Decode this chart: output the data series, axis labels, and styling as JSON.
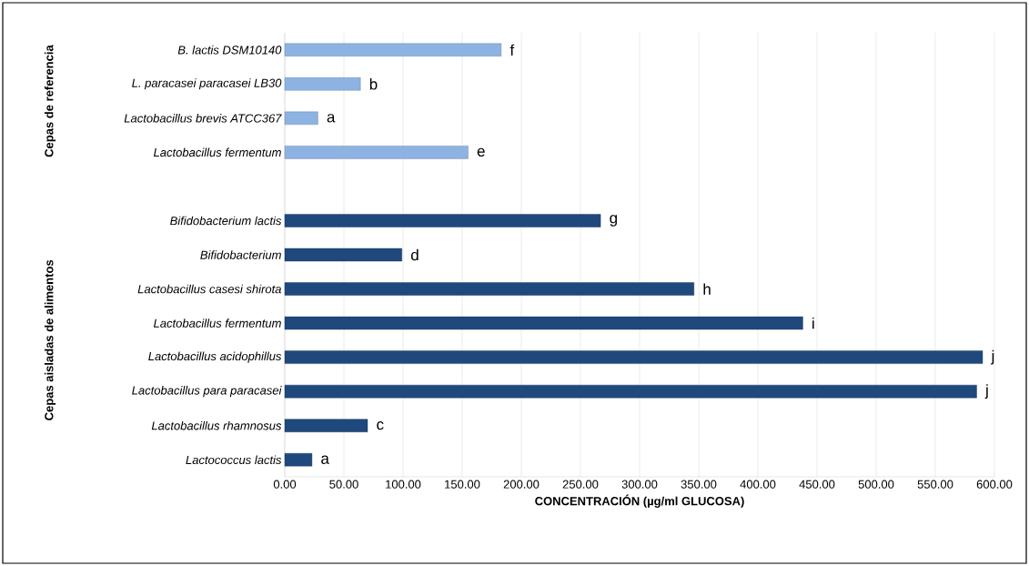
{
  "chart_data": {
    "type": "bar",
    "orientation": "horizontal",
    "xlabel": "CONCENTRACIÓN (µg/ml GLUCOSA)",
    "categories": [
      "B. lactis DSM10140",
      "L. paracasei paracasei LB30",
      "Lactobacillus brevis ATCC367",
      "Lactobacillus fermentum",
      null,
      "Bifidobacterium lactis",
      "Bifidobacterium",
      "Lactobacillus casesi shirota",
      "Lactobacillus fermentum",
      "Lactobacillus acidophillus",
      "Lactobacillus para paracasei",
      "Lactobacillus rhamnosus",
      "Lactococcus lactis"
    ],
    "values": [
      183,
      64,
      28,
      155,
      null,
      267,
      99,
      346,
      438,
      590,
      585,
      70,
      23
    ],
    "colors": [
      "#8db3e2",
      "#8db3e2",
      "#8db3e2",
      "#8db3e2",
      "#8db3e2",
      "#1f497d",
      "#1f497d",
      "#1f497d",
      "#1f497d",
      "#1f497d",
      "#1f497d",
      "#1f497d",
      "#1f497d"
    ],
    "value_labels": [
      "f",
      "b",
      "a",
      "e",
      null,
      "g",
      "d",
      "h",
      "i",
      "j",
      "j",
      "c",
      "a"
    ],
    "annotations": [
      "Cepas de referencia",
      "Cepas aisladas de alimentos"
    ],
    "xlim": [
      0,
      600
    ],
    "xticks": [
      {
        "value": 0,
        "label": "0.00"
      },
      {
        "value": 50,
        "label": "50.00"
      },
      {
        "value": 100,
        "label": "100.00"
      },
      {
        "value": 150,
        "label": "150.00"
      },
      {
        "value": 200,
        "label": "200.00"
      },
      {
        "value": 250,
        "label": "250.00"
      },
      {
        "value": 300,
        "label": "300.00"
      },
      {
        "value": 350,
        "label": "350.00"
      },
      {
        "value": 400,
        "label": "400.00"
      },
      {
        "value": 450,
        "label": "450.00"
      },
      {
        "value": 500,
        "label": "500.00"
      },
      {
        "value": 550,
        "label": "550.00"
      },
      {
        "value": 600,
        "label": "600.00"
      }
    ],
    "grid": "x"
  }
}
